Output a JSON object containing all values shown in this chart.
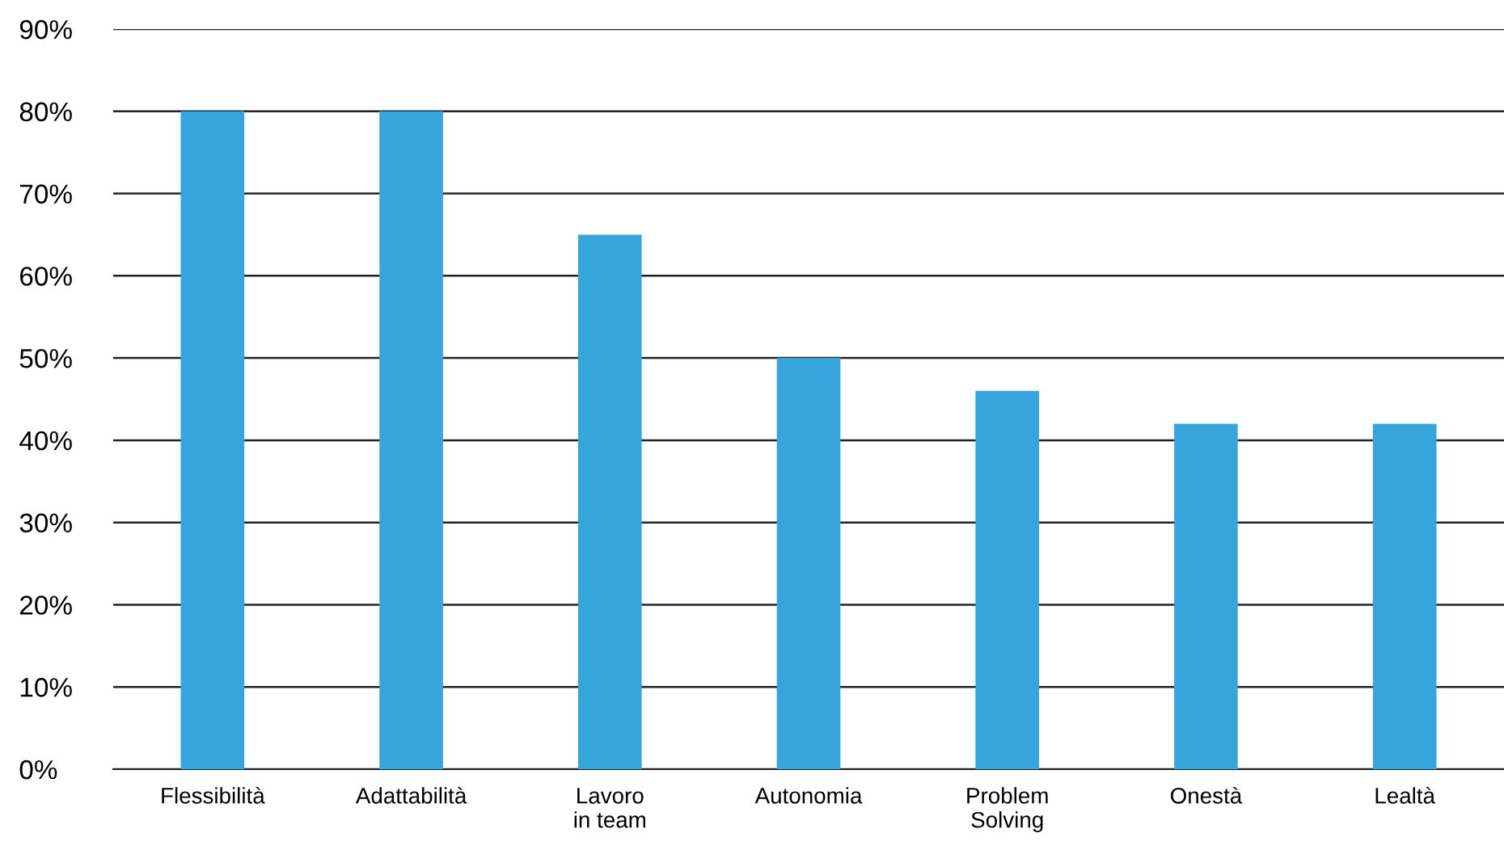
{
  "chart_data": {
    "type": "bar",
    "categories": [
      "Flessibilità",
      "Adattabilità",
      "Lavoro\nin team",
      "Autonomia",
      "Problem\nSolving",
      "Onestà",
      "Lealtà"
    ],
    "values": [
      80,
      80,
      65,
      50,
      46,
      42,
      42
    ],
    "color": "#36a5dc",
    "ylim": [
      0,
      90
    ],
    "yticks": [
      {
        "value": 0,
        "label": "0%"
      },
      {
        "value": 10,
        "label": "10%"
      },
      {
        "value": 20,
        "label": "20%"
      },
      {
        "value": 30,
        "label": "30%"
      },
      {
        "value": 40,
        "label": "40%"
      },
      {
        "value": 50,
        "label": "50%"
      },
      {
        "value": 60,
        "label": "60%"
      },
      {
        "value": 70,
        "label": "70%"
      },
      {
        "value": 80,
        "label": "80%"
      },
      {
        "value": 90,
        "label": "90%"
      }
    ],
    "grid": "y"
  }
}
